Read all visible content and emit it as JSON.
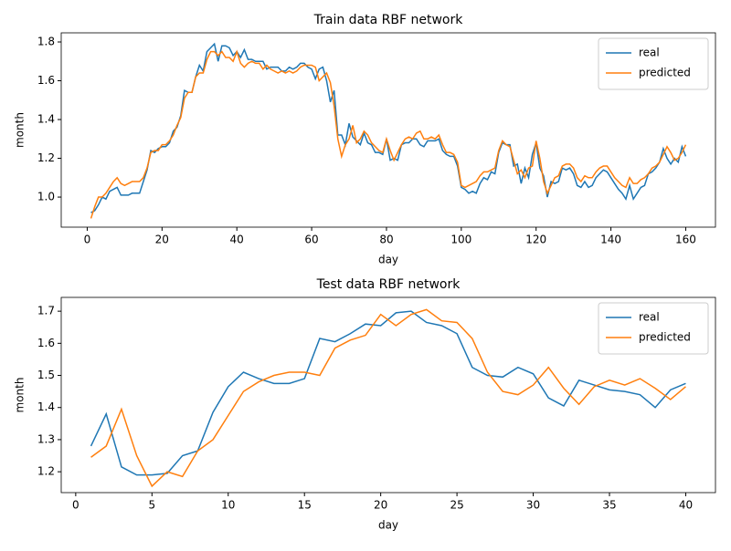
{
  "chart_data": [
    {
      "type": "line",
      "title": "Train data RBF network",
      "xlabel": "day",
      "ylabel": "month",
      "x": [
        1,
        2,
        3,
        4,
        5,
        6,
        7,
        8,
        9,
        10,
        11,
        12,
        13,
        14,
        15,
        16,
        17,
        18,
        19,
        20,
        21,
        22,
        23,
        24,
        25,
        26,
        27,
        28,
        29,
        30,
        31,
        32,
        33,
        34,
        35,
        36,
        37,
        38,
        39,
        40,
        41,
        42,
        43,
        44,
        45,
        46,
        47,
        48,
        49,
        50,
        51,
        52,
        53,
        54,
        55,
        56,
        57,
        58,
        59,
        60,
        61,
        62,
        63,
        64,
        65,
        66,
        67,
        68,
        69,
        70,
        71,
        72,
        73,
        74,
        75,
        76,
        77,
        78,
        79,
        80,
        81,
        82,
        83,
        84,
        85,
        86,
        87,
        88,
        89,
        90,
        91,
        92,
        93,
        94,
        95,
        96,
        97,
        98,
        99,
        100,
        101,
        102,
        103,
        104,
        105,
        106,
        107,
        108,
        109,
        110,
        111,
        112,
        113,
        114,
        115,
        116,
        117,
        118,
        119,
        120,
        121,
        122,
        123,
        124,
        125,
        126,
        127,
        128,
        129,
        130,
        131,
        132,
        133,
        134,
        135,
        136,
        137,
        138,
        139,
        140,
        141,
        142,
        143,
        144,
        145,
        146,
        147,
        148,
        149,
        150,
        151,
        152,
        153,
        154,
        155,
        156,
        157,
        158,
        159,
        160
      ],
      "series": [
        {
          "name": "real",
          "color": "#1f77b4",
          "values": [
            0.92,
            0.93,
            0.96,
            1.0,
            0.99,
            1.03,
            1.04,
            1.05,
            1.01,
            1.01,
            1.01,
            1.02,
            1.02,
            1.02,
            1.08,
            1.14,
            1.24,
            1.23,
            1.25,
            1.26,
            1.26,
            1.28,
            1.34,
            1.36,
            1.42,
            1.55,
            1.54,
            1.54,
            1.62,
            1.68,
            1.65,
            1.75,
            1.77,
            1.79,
            1.7,
            1.78,
            1.78,
            1.77,
            1.73,
            1.75,
            1.72,
            1.76,
            1.71,
            1.71,
            1.7,
            1.7,
            1.7,
            1.66,
            1.67,
            1.67,
            1.67,
            1.65,
            1.65,
            1.67,
            1.66,
            1.67,
            1.69,
            1.69,
            1.67,
            1.66,
            1.61,
            1.66,
            1.67,
            1.6,
            1.49,
            1.55,
            1.32,
            1.32,
            1.27,
            1.38,
            1.31,
            1.29,
            1.27,
            1.33,
            1.28,
            1.27,
            1.23,
            1.23,
            1.22,
            1.3,
            1.19,
            1.2,
            1.19,
            1.27,
            1.28,
            1.28,
            1.3,
            1.3,
            1.27,
            1.26,
            1.29,
            1.29,
            1.29,
            1.3,
            1.24,
            1.22,
            1.21,
            1.21,
            1.16,
            1.05,
            1.04,
            1.02,
            1.03,
            1.02,
            1.07,
            1.1,
            1.09,
            1.13,
            1.12,
            1.23,
            1.28,
            1.27,
            1.27,
            1.16,
            1.17,
            1.07,
            1.15,
            1.1,
            1.22,
            1.28,
            1.15,
            1.11,
            1.0,
            1.08,
            1.07,
            1.08,
            1.15,
            1.14,
            1.15,
            1.12,
            1.06,
            1.05,
            1.08,
            1.05,
            1.06,
            1.1,
            1.12,
            1.14,
            1.13,
            1.1,
            1.07,
            1.04,
            1.02,
            0.99,
            1.06,
            0.99,
            1.02,
            1.05,
            1.06,
            1.12,
            1.13,
            1.15,
            1.18,
            1.25,
            1.2,
            1.17,
            1.2,
            1.18,
            1.26,
            1.21
          ]
        },
        {
          "name": "predicted",
          "color": "#ff7f0e",
          "values": [
            0.89,
            0.95,
            1.0,
            1.0,
            1.02,
            1.05,
            1.08,
            1.1,
            1.07,
            1.06,
            1.07,
            1.08,
            1.08,
            1.08,
            1.1,
            1.15,
            1.23,
            1.24,
            1.24,
            1.27,
            1.27,
            1.29,
            1.32,
            1.37,
            1.41,
            1.51,
            1.54,
            1.54,
            1.62,
            1.64,
            1.64,
            1.71,
            1.75,
            1.75,
            1.73,
            1.75,
            1.72,
            1.72,
            1.7,
            1.75,
            1.69,
            1.67,
            1.69,
            1.7,
            1.69,
            1.69,
            1.66,
            1.68,
            1.66,
            1.65,
            1.64,
            1.65,
            1.64,
            1.65,
            1.64,
            1.65,
            1.67,
            1.68,
            1.68,
            1.68,
            1.67,
            1.6,
            1.62,
            1.64,
            1.59,
            1.47,
            1.3,
            1.21,
            1.27,
            1.3,
            1.37,
            1.28,
            1.3,
            1.34,
            1.32,
            1.28,
            1.26,
            1.24,
            1.23,
            1.3,
            1.24,
            1.19,
            1.23,
            1.27,
            1.3,
            1.31,
            1.3,
            1.33,
            1.34,
            1.3,
            1.3,
            1.31,
            1.3,
            1.32,
            1.27,
            1.23,
            1.23,
            1.22,
            1.18,
            1.06,
            1.05,
            1.06,
            1.07,
            1.08,
            1.11,
            1.13,
            1.13,
            1.14,
            1.15,
            1.24,
            1.29,
            1.27,
            1.26,
            1.19,
            1.12,
            1.14,
            1.1,
            1.15,
            1.16,
            1.29,
            1.2,
            1.08,
            1.02,
            1.06,
            1.1,
            1.11,
            1.16,
            1.17,
            1.17,
            1.15,
            1.1,
            1.08,
            1.11,
            1.1,
            1.1,
            1.13,
            1.15,
            1.16,
            1.16,
            1.13,
            1.1,
            1.08,
            1.06,
            1.05,
            1.1,
            1.07,
            1.07,
            1.09,
            1.1,
            1.12,
            1.15,
            1.16,
            1.18,
            1.22,
            1.26,
            1.23,
            1.19,
            1.2,
            1.23,
            1.27
          ]
        }
      ],
      "xlim": [
        -6.95,
        167.95
      ],
      "xticks": [
        0,
        20,
        40,
        60,
        80,
        100,
        120,
        140,
        160
      ],
      "ylim": [
        0.845,
        1.847
      ],
      "yticks": [
        {
          "value": 1,
          "label": "1.0"
        },
        1.2,
        1.4,
        1.6,
        1.8
      ],
      "legend": "upper right"
    },
    {
      "type": "line",
      "title": "Test data RBF network",
      "xlabel": "day",
      "ylabel": "month",
      "x": [
        1,
        2,
        3,
        4,
        5,
        6,
        7,
        8,
        9,
        10,
        11,
        12,
        13,
        14,
        15,
        16,
        17,
        18,
        19,
        20,
        21,
        22,
        23,
        24,
        25,
        26,
        27,
        28,
        29,
        30,
        31,
        32,
        33,
        34,
        35,
        36,
        37,
        38,
        39,
        40
      ],
      "series": [
        {
          "name": "real",
          "color": "#1f77b4",
          "values": [
            1.28,
            1.38,
            1.215,
            1.19,
            1.19,
            1.195,
            1.25,
            1.265,
            1.385,
            1.465,
            1.51,
            1.49,
            1.475,
            1.475,
            1.49,
            1.615,
            1.605,
            1.63,
            1.66,
            1.655,
            1.695,
            1.7,
            1.665,
            1.655,
            1.63,
            1.525,
            1.5,
            1.495,
            1.525,
            1.505,
            1.43,
            1.405,
            1.485,
            1.47,
            1.455,
            1.45,
            1.44,
            1.4,
            1.455,
            1.475
          ]
        },
        {
          "name": "predicted",
          "color": "#ff7f0e",
          "values": [
            1.245,
            1.28,
            1.395,
            1.25,
            1.155,
            1.2,
            1.185,
            1.265,
            1.3,
            1.375,
            1.45,
            1.48,
            1.5,
            1.51,
            1.51,
            1.5,
            1.585,
            1.61,
            1.625,
            1.69,
            1.655,
            1.69,
            1.705,
            1.67,
            1.665,
            1.615,
            1.51,
            1.45,
            1.44,
            1.47,
            1.525,
            1.46,
            1.41,
            1.465,
            1.485,
            1.47,
            1.49,
            1.46,
            1.425,
            1.465
          ]
        }
      ],
      "xlim": [
        -0.95,
        41.95
      ],
      "xticks": [
        0,
        5,
        10,
        15,
        20,
        25,
        30,
        35,
        40
      ],
      "ylim": [
        1.135,
        1.743
      ],
      "yticks": [
        1.2,
        1.3,
        1.4,
        1.5,
        1.6,
        1.7
      ],
      "legend": "upper right"
    }
  ]
}
